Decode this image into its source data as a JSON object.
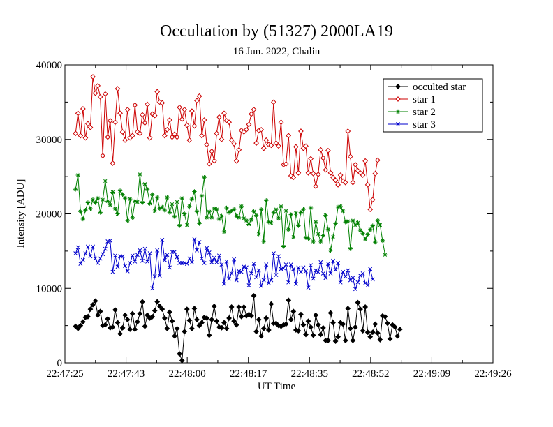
{
  "chart_data": {
    "type": "line",
    "title": "Occultation by (51327) 2000LA19",
    "subtitle": "16 Jun. 2022, Chalin",
    "xlabel": "UT Time",
    "ylabel": "Intensity [ADU]",
    "xlim": [
      "22:47:25",
      "22:49:26"
    ],
    "ylim": [
      0,
      40000
    ],
    "x_ticks": [
      "22:47:25",
      "22:47:43",
      "22:48:00",
      "22:48:17",
      "22:48:35",
      "22:48:52",
      "22:49:09",
      "22:49:26"
    ],
    "y_ticks": [
      "0",
      "10000",
      "20000",
      "30000",
      "40000"
    ],
    "grid": false,
    "legend_position": "top-right",
    "x_start": "22:47:28",
    "x_step_seconds": 0.7,
    "series": [
      {
        "name": "occulted star",
        "color": "#000000",
        "marker": "diamond-filled",
        "values": [
          4900,
          4600,
          5000,
          5500,
          6100,
          6200,
          7200,
          7800,
          8300,
          6400,
          6900,
          5000,
          5100,
          5900,
          4700,
          4800,
          7100,
          5400,
          3900,
          4700,
          6400,
          5800,
          4500,
          6600,
          4500,
          5500,
          6600,
          8200,
          4900,
          6400,
          6000,
          6200,
          7000,
          8200,
          7600,
          7200,
          6000,
          4600,
          6800,
          5600,
          3600,
          4600,
          1200,
          300,
          4200,
          7200,
          5700,
          4600,
          7300,
          5800,
          5000,
          5400,
          6100,
          6000,
          3700,
          5800,
          7600,
          5600,
          4800,
          4700,
          5400,
          4600,
          6000,
          7500,
          5600,
          5100,
          7500,
          6200,
          7500,
          6300,
          6500,
          6300,
          9000,
          4200,
          5800,
          3600,
          4600,
          6000,
          4400,
          7900,
          5300,
          5300,
          5000,
          4900,
          5100,
          5200,
          8400,
          5800,
          6900,
          4400,
          4300,
          6500,
          5100,
          3800,
          5600,
          4800,
          3700,
          6400,
          5100,
          3800,
          4700,
          3000,
          3000,
          6700,
          5400,
          2900,
          3500,
          5400,
          5200,
          3000,
          7300,
          4600,
          3000,
          4800,
          8100,
          7200,
          4300,
          7500,
          4100,
          3500,
          4100,
          5200,
          4000,
          3100,
          6300,
          6200,
          5300,
          3200,
          5100,
          4800,
          3600,
          4500
        ]
      },
      {
        "name": "star 1",
        "color": "#cc0000",
        "marker": "diamond-open",
        "values": [
          30800,
          33500,
          30500,
          34100,
          30200,
          32100,
          31600,
          38400,
          36200,
          37200,
          35700,
          27800,
          36100,
          30300,
          32500,
          26800,
          32300,
          36800,
          33500,
          31000,
          29900,
          34000,
          30200,
          30500,
          34600,
          31000,
          30800,
          33300,
          32200,
          34700,
          30200,
          33400,
          33200,
          36400,
          35000,
          34900,
          30500,
          31300,
          32600,
          30300,
          30700,
          30300,
          34300,
          32700,
          34000,
          31900,
          29900,
          33800,
          31800,
          35200,
          35800,
          30500,
          32600,
          29300,
          26700,
          28400,
          27100,
          30800,
          33000,
          30000,
          33500,
          32500,
          32300,
          29900,
          29400,
          27100,
          28600,
          31200,
          31000,
          31300,
          32000,
          33400,
          34000,
          29500,
          31200,
          31300,
          28800,
          29900,
          29300,
          29200,
          35000,
          29500,
          29100,
          32300,
          26600,
          26700,
          30500,
          25100,
          24900,
          29000,
          25500,
          31100,
          28800,
          29100,
          25500,
          27400,
          25400,
          23700,
          25300,
          28600,
          27500,
          25900,
          28500,
          25500,
          24900,
          24500,
          23900,
          25200,
          24400,
          24200,
          31100,
          27700,
          24200,
          26600,
          25800,
          25500,
          25200,
          27100,
          23900,
          20600,
          21900,
          25400,
          27200
        ]
      },
      {
        "name": "star 2",
        "color": "#008000",
        "marker": "asterisk",
        "values": [
          23300,
          25200,
          20300,
          19300,
          20500,
          21500,
          20700,
          21900,
          21500,
          22100,
          20200,
          21900,
          24400,
          21700,
          21200,
          22900,
          20700,
          20000,
          23100,
          22600,
          22100,
          19100,
          22000,
          19500,
          21700,
          21600,
          25300,
          21500,
          24000,
          23300,
          21400,
          22600,
          20400,
          22200,
          20700,
          20900,
          20500,
          22200,
          20200,
          21300,
          19600,
          21600,
          18400,
          22100,
          20000,
          18500,
          21000,
          22000,
          23000,
          20300,
          18700,
          22400,
          24900,
          19500,
          20300,
          19500,
          20700,
          20600,
          19300,
          19700,
          17600,
          20800,
          20200,
          20400,
          20600,
          19700,
          19500,
          21000,
          19400,
          19100,
          18600,
          19200,
          20300,
          19800,
          17300,
          20600,
          16300,
          21800,
          18900,
          18800,
          20200,
          20600,
          19400,
          21000,
          15600,
          20400,
          17900,
          19900,
          16900,
          20100,
          18400,
          20200,
          20600,
          16800,
          16700,
          20800,
          16300,
          18900,
          17300,
          16300,
          17100,
          19800,
          17900,
          15100,
          16900,
          18700,
          20900,
          21000,
          20400,
          18900,
          19000,
          15300,
          19100,
          18500,
          18800,
          17800,
          17400,
          16600,
          17200,
          17900,
          18400,
          16200,
          19100,
          18500,
          16400,
          14500
        ]
      },
      {
        "name": "star 3",
        "color": "#0000cc",
        "marker": "cross",
        "values": [
          14700,
          15500,
          13300,
          13800,
          14700,
          15600,
          14300,
          15600,
          14000,
          13400,
          14000,
          14600,
          15300,
          16300,
          16400,
          12200,
          14400,
          12900,
          14300,
          14300,
          13000,
          12300,
          13400,
          14400,
          13600,
          14500,
          15100,
          13700,
          15300,
          13600,
          14700,
          10000,
          11600,
          15100,
          11700,
          16500,
          13800,
          14500,
          12800,
          14900,
          14900,
          14200,
          13400,
          13400,
          13400,
          13300,
          14000,
          13500,
          16600,
          15100,
          16200,
          14000,
          13400,
          15400,
          14800,
          13500,
          14100,
          13500,
          14400,
          13200,
          10600,
          13600,
          11300,
          12000,
          13900,
          11100,
          12300,
          12200,
          12900,
          12800,
          10400,
          12000,
          13300,
          11500,
          12400,
          10300,
          11100,
          13200,
          10700,
          11100,
          14700,
          11800,
          14300,
          12600,
          12700,
          13200,
          10800,
          13200,
          12600,
          10600,
          12800,
          12200,
          12800,
          12300,
          10100,
          13100,
          11300,
          12400,
          12200,
          13500,
          12000,
          11400,
          13300,
          12000,
          13700,
          12500,
          13400,
          10800,
          12200,
          11600,
          12400,
          11100,
          11400,
          9900,
          10800,
          11700,
          12000,
          10700,
          10400,
          12600,
          11200
        ]
      }
    ]
  }
}
